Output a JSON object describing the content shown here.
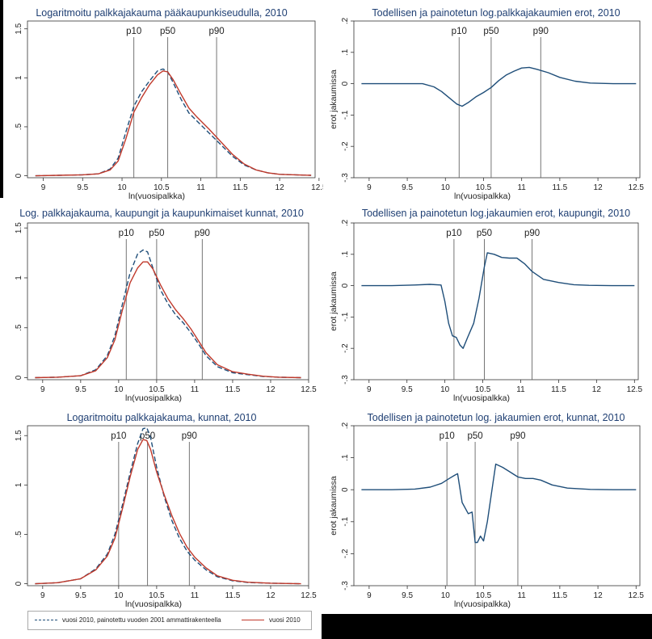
{
  "chart_data": [
    {
      "type": "line",
      "title": "Logaritmoitu palkkajakauma pääkaupunkiseudulla, 2010",
      "xlabel": "ln(vuosipalkka)",
      "ylabel": "",
      "xlim": [
        8.8,
        12.45
      ],
      "ylim": [
        -0.02,
        1.58
      ],
      "xticks": [
        9,
        9.5,
        10,
        10.5,
        11,
        11.5,
        12,
        12.5
      ],
      "xtick_labels": [
        "9",
        "9.5",
        "10",
        "10.5",
        "11",
        "11.5",
        "12",
        "12.5"
      ],
      "yticks": [
        0,
        0.5,
        1,
        1.5
      ],
      "ytick_labels": [
        "0",
        ".5",
        "1",
        "1.5"
      ],
      "vlines": [
        {
          "label": "p10",
          "x": 10.15
        },
        {
          "label": "p50",
          "x": 10.58
        },
        {
          "label": "p90",
          "x": 11.2
        }
      ],
      "series": [
        {
          "name": "vuosi 2010, painotettu vuoden 2001 ammattirakenteella",
          "color": "#1f4e79",
          "dash": true,
          "x": [
            8.9,
            9.2,
            9.5,
            9.7,
            9.85,
            9.95,
            10.05,
            10.15,
            10.25,
            10.35,
            10.45,
            10.52,
            10.58,
            10.65,
            10.75,
            10.85,
            10.95,
            11.1,
            11.25,
            11.4,
            11.55,
            11.7,
            11.85,
            12.0,
            12.2,
            12.4
          ],
          "y": [
            0.0,
            0.005,
            0.01,
            0.02,
            0.07,
            0.18,
            0.45,
            0.71,
            0.86,
            0.97,
            1.07,
            1.09,
            1.06,
            0.95,
            0.78,
            0.64,
            0.56,
            0.44,
            0.32,
            0.2,
            0.11,
            0.06,
            0.03,
            0.015,
            0.01,
            0.005
          ]
        },
        {
          "name": "vuosi 2010",
          "color": "#c0392b",
          "dash": false,
          "x": [
            8.9,
            9.2,
            9.5,
            9.7,
            9.85,
            9.95,
            10.05,
            10.15,
            10.25,
            10.35,
            10.45,
            10.52,
            10.58,
            10.65,
            10.75,
            10.85,
            10.95,
            11.1,
            11.25,
            11.4,
            11.55,
            11.7,
            11.85,
            12.0,
            12.2,
            12.4
          ],
          "y": [
            0.0,
            0.005,
            0.01,
            0.02,
            0.06,
            0.15,
            0.38,
            0.65,
            0.8,
            0.93,
            1.03,
            1.07,
            1.06,
            0.98,
            0.83,
            0.69,
            0.6,
            0.48,
            0.35,
            0.22,
            0.12,
            0.06,
            0.03,
            0.015,
            0.01,
            0.005
          ]
        }
      ]
    },
    {
      "type": "line",
      "title": "Todellisen ja painotetun log.palkkajakaumien erot, 2010",
      "xlabel": "ln(vuosipalkka)",
      "ylabel": "erot jakaumissa",
      "xlim": [
        8.8,
        12.55
      ],
      "ylim": [
        -0.3,
        0.2
      ],
      "xticks": [
        9,
        9.5,
        10,
        10.5,
        11,
        11.5,
        12,
        12.5
      ],
      "xtick_labels": [
        "9",
        "9.5",
        "10",
        "10.5",
        "11",
        "11.5",
        "12",
        "12.5"
      ],
      "yticks": [
        -0.3,
        -0.2,
        -0.1,
        0,
        0.1,
        0.2
      ],
      "ytick_labels": [
        "-.3",
        "-.2",
        "-.1",
        "0",
        ".1",
        ".2"
      ],
      "vlines": [
        {
          "label": "p10",
          "x": 10.18
        },
        {
          "label": "p50",
          "x": 10.6
        },
        {
          "label": "p90",
          "x": 11.25
        }
      ],
      "series": [
        {
          "name": "",
          "color": "#1f4e79",
          "dash": false,
          "x": [
            8.9,
            9.4,
            9.7,
            9.85,
            9.95,
            10.05,
            10.15,
            10.22,
            10.3,
            10.4,
            10.5,
            10.6,
            10.7,
            10.8,
            10.9,
            11.0,
            11.1,
            11.2,
            11.35,
            11.5,
            11.7,
            11.9,
            12.2,
            12.5
          ],
          "y": [
            0.0,
            0.0,
            0.0,
            -0.01,
            -0.025,
            -0.045,
            -0.065,
            -0.072,
            -0.06,
            -0.042,
            -0.028,
            -0.012,
            0.01,
            0.028,
            0.04,
            0.05,
            0.052,
            0.046,
            0.035,
            0.02,
            0.008,
            0.002,
            0.0,
            0.0
          ]
        }
      ]
    },
    {
      "type": "line",
      "title": "Log. palkkajakauma, kaupungit ja kaupunkimaiset kunnat, 2010",
      "xlabel": "ln(vuosipalkka)",
      "ylabel": "",
      "xlim": [
        8.8,
        12.5
      ],
      "ylim": [
        -0.02,
        1.55
      ],
      "xticks": [
        9,
        9.5,
        10,
        10.5,
        11,
        11.5,
        12,
        12.5
      ],
      "xtick_labels": [
        "9",
        "9.5",
        "10",
        "10.5",
        "11",
        "11.5",
        "12",
        "12.5"
      ],
      "yticks": [
        0,
        0.5,
        1,
        1.5
      ],
      "ytick_labels": [
        "0",
        ".5",
        "1",
        "1.5"
      ],
      "vlines": [
        {
          "label": "p10",
          "x": 10.1
        },
        {
          "label": "p50",
          "x": 10.5
        },
        {
          "label": "p90",
          "x": 11.1
        }
      ],
      "series": [
        {
          "name": "vuosi 2010, painotettu vuoden 2001 ammattirakenteella",
          "color": "#1f4e79",
          "dash": true,
          "x": [
            8.9,
            9.2,
            9.5,
            9.7,
            9.85,
            9.95,
            10.05,
            10.15,
            10.25,
            10.32,
            10.38,
            10.45,
            10.55,
            10.65,
            10.75,
            10.85,
            10.95,
            11.05,
            11.15,
            11.3,
            11.5,
            11.7,
            11.9,
            12.1,
            12.4
          ],
          "y": [
            0.0,
            0.005,
            0.02,
            0.08,
            0.22,
            0.42,
            0.74,
            1.05,
            1.24,
            1.28,
            1.26,
            1.1,
            0.88,
            0.74,
            0.63,
            0.55,
            0.45,
            0.34,
            0.22,
            0.11,
            0.05,
            0.03,
            0.012,
            0.005,
            0.0
          ]
        },
        {
          "name": "vuosi 2010",
          "color": "#c0392b",
          "dash": false,
          "x": [
            8.9,
            9.2,
            9.5,
            9.7,
            9.85,
            9.95,
            10.05,
            10.15,
            10.25,
            10.32,
            10.38,
            10.45,
            10.55,
            10.65,
            10.75,
            10.85,
            10.95,
            11.05,
            11.15,
            11.3,
            11.5,
            11.7,
            11.9,
            12.1,
            12.4
          ],
          "y": [
            0.0,
            0.005,
            0.02,
            0.07,
            0.2,
            0.38,
            0.68,
            0.95,
            1.1,
            1.16,
            1.16,
            1.09,
            0.93,
            0.79,
            0.68,
            0.59,
            0.49,
            0.37,
            0.25,
            0.13,
            0.06,
            0.035,
            0.015,
            0.005,
            0.0
          ]
        }
      ]
    },
    {
      "type": "line",
      "title": "Todellisen ja painotetun log.jakaumien erot, kaupungit, 2010",
      "xlabel": "ln(vuosipalkka)",
      "ylabel": "erot jakaumissa",
      "xlim": [
        8.8,
        12.55
      ],
      "ylim": [
        -0.3,
        0.2
      ],
      "xticks": [
        9,
        9.5,
        10,
        10.5,
        11,
        11.5,
        12,
        12.5
      ],
      "xtick_labels": [
        "9",
        "9.5",
        "10",
        "10.5",
        "11",
        "11.5",
        "12",
        "12.5"
      ],
      "yticks": [
        -0.3,
        -0.2,
        -0.1,
        0,
        0.1,
        0.2
      ],
      "ytick_labels": [
        "-.3",
        "-.2",
        "-.1",
        "0",
        ".1",
        ".2"
      ],
      "vlines": [
        {
          "label": "p10",
          "x": 10.12
        },
        {
          "label": "p50",
          "x": 10.52
        },
        {
          "label": "p90",
          "x": 11.15
        }
      ],
      "series": [
        {
          "name": "",
          "color": "#1f4e79",
          "dash": false,
          "x": [
            8.9,
            9.3,
            9.6,
            9.8,
            9.95,
            10.0,
            10.05,
            10.1,
            10.15,
            10.2,
            10.24,
            10.3,
            10.38,
            10.45,
            10.52,
            10.56,
            10.65,
            10.75,
            10.85,
            10.95,
            11.05,
            11.15,
            11.3,
            11.5,
            11.7,
            11.9,
            12.2,
            12.5
          ],
          "y": [
            0.0,
            0.0,
            0.002,
            0.004,
            0.002,
            -0.05,
            -0.12,
            -0.16,
            -0.165,
            -0.19,
            -0.2,
            -0.165,
            -0.12,
            -0.04,
            0.06,
            0.105,
            0.1,
            0.09,
            0.088,
            0.088,
            0.07,
            0.045,
            0.02,
            0.01,
            0.003,
            0.001,
            0.0,
            0.0
          ]
        }
      ]
    },
    {
      "type": "line",
      "title": "Logaritmoitu palkkajakauma, kunnat, 2010",
      "xlabel": "ln(vuosipalkka)",
      "ylabel": "",
      "xlim": [
        8.8,
        12.5
      ],
      "ylim": [
        -0.02,
        1.6
      ],
      "xticks": [
        9,
        9.5,
        10,
        10.5,
        11,
        11.5,
        12,
        12.5
      ],
      "xtick_labels": [
        "9",
        "9.5",
        "10",
        "10.5",
        "11",
        "11.5",
        "12",
        "12.5"
      ],
      "yticks": [
        0,
        0.5,
        1,
        1.5
      ],
      "ytick_labels": [
        "0",
        ".5",
        "1",
        "1.5"
      ],
      "vlines": [
        {
          "label": "p10",
          "x": 10.0
        },
        {
          "label": "p50",
          "x": 10.38
        },
        {
          "label": "p90",
          "x": 10.93
        }
      ],
      "series": [
        {
          "name": "vuosi 2010, painotettu vuoden 2001 ammattirakenteella",
          "color": "#1f4e79",
          "dash": true,
          "x": [
            8.9,
            9.2,
            9.5,
            9.7,
            9.85,
            9.95,
            10.05,
            10.15,
            10.25,
            10.32,
            10.37,
            10.42,
            10.5,
            10.6,
            10.7,
            10.8,
            10.9,
            11.0,
            11.15,
            11.3,
            11.5,
            11.7,
            12.0,
            12.4
          ],
          "y": [
            0.0,
            0.01,
            0.05,
            0.15,
            0.3,
            0.5,
            0.8,
            1.12,
            1.42,
            1.57,
            1.58,
            1.48,
            1.18,
            0.88,
            0.64,
            0.46,
            0.33,
            0.24,
            0.14,
            0.07,
            0.03,
            0.012,
            0.005,
            0.0
          ]
        },
        {
          "name": "vuosi 2010",
          "color": "#c0392b",
          "dash": false,
          "x": [
            8.9,
            9.2,
            9.5,
            9.7,
            9.85,
            9.95,
            10.05,
            10.15,
            10.25,
            10.32,
            10.37,
            10.42,
            10.5,
            10.6,
            10.7,
            10.8,
            10.9,
            11.0,
            11.15,
            11.3,
            11.5,
            11.7,
            12.0,
            12.4
          ],
          "y": [
            0.0,
            0.01,
            0.05,
            0.14,
            0.28,
            0.46,
            0.76,
            1.08,
            1.36,
            1.46,
            1.45,
            1.36,
            1.13,
            0.9,
            0.69,
            0.51,
            0.37,
            0.27,
            0.16,
            0.08,
            0.035,
            0.015,
            0.005,
            0.0
          ]
        }
      ]
    },
    {
      "type": "line",
      "title": "Todellisen ja painotetun log. jakaumien erot, kunnat, 2010",
      "xlabel": "ln(vuosipalkka)",
      "ylabel": "erot jakaumissa",
      "xlim": [
        8.8,
        12.55
      ],
      "ylim": [
        -0.3,
        0.2
      ],
      "xticks": [
        9,
        9.5,
        10,
        10.5,
        11,
        11.5,
        12,
        12.5
      ],
      "xtick_labels": [
        "9",
        "9.5",
        "10",
        "10.5",
        "11",
        "11.5",
        "12",
        "12.5"
      ],
      "yticks": [
        -0.3,
        -0.2,
        -0.1,
        0,
        0.1,
        0.2
      ],
      "ytick_labels": [
        "-.3",
        "-.2",
        "-.1",
        "0",
        ".1",
        ".2"
      ],
      "vlines": [
        {
          "label": "p10",
          "x": 10.02
        },
        {
          "label": "p50",
          "x": 10.39
        },
        {
          "label": "p90",
          "x": 10.95
        }
      ],
      "series": [
        {
          "name": "",
          "color": "#1f4e79",
          "dash": false,
          "x": [
            8.9,
            9.3,
            9.6,
            9.8,
            9.95,
            10.05,
            10.12,
            10.16,
            10.22,
            10.3,
            10.35,
            10.39,
            10.42,
            10.46,
            10.5,
            10.55,
            10.62,
            10.66,
            10.75,
            10.85,
            10.95,
            11.05,
            11.15,
            11.25,
            11.4,
            11.6,
            11.9,
            12.2,
            12.5
          ],
          "y": [
            0.0,
            0.0,
            0.002,
            0.008,
            0.02,
            0.035,
            0.045,
            0.05,
            -0.04,
            -0.075,
            -0.07,
            -0.165,
            -0.165,
            -0.145,
            -0.16,
            -0.1,
            0.015,
            0.08,
            0.07,
            0.055,
            0.04,
            0.035,
            0.035,
            0.03,
            0.015,
            0.005,
            0.001,
            0.0,
            0.0
          ]
        }
      ]
    }
  ],
  "legend": {
    "dashed_label": "vuosi 2010, painotettu vuoden 2001 ammattirakenteella",
    "solid_label": "vuosi 2010",
    "dashed_color": "#1f4e79",
    "solid_color": "#c0392b"
  }
}
